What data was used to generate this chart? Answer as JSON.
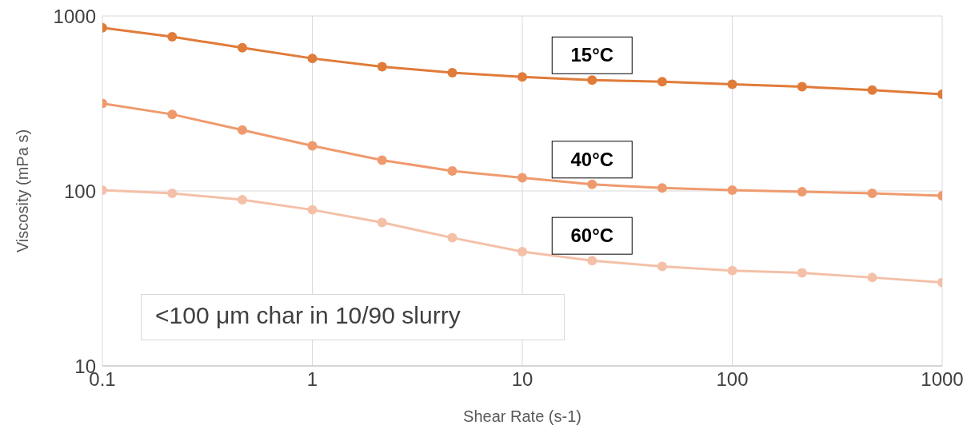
{
  "chart_data": {
    "type": "line",
    "xlabel": "Shear Rate (s-1)",
    "ylabel": "Viscosity (mPa s)",
    "log": "xy",
    "x": [
      0.1,
      0.215,
      0.464,
      1,
      2.15,
      4.64,
      10,
      21.5,
      46.4,
      100,
      215,
      464,
      1000
    ],
    "xlim": [
      0.1,
      1000
    ],
    "xticks": [
      0.1,
      1,
      10,
      100,
      1000
    ],
    "ylim": [
      10,
      1000
    ],
    "yticks": [
      10,
      100,
      1000
    ],
    "grid": true,
    "legend": false,
    "marker": "circle",
    "line_style": "solid",
    "series": [
      {
        "name": "15°C",
        "color": "#e07b39",
        "values": [
          857,
          760,
          659,
          572,
          513,
          474,
          449,
          430,
          421,
          407,
          394,
          377,
          357
        ]
      },
      {
        "name": "40°C",
        "color": "#ef9a6e",
        "values": [
          316,
          274,
          223,
          181,
          150,
          130,
          119,
          109,
          104,
          101,
          99,
          97,
          94
        ]
      },
      {
        "name": "60°C",
        "color": "#f4c0a8",
        "values": [
          101,
          97,
          89,
          78,
          66,
          54,
          45,
          40,
          37,
          35,
          34,
          32,
          30
        ]
      }
    ],
    "annotations": [
      "<100 μm char in 10/90 slurry"
    ]
  }
}
